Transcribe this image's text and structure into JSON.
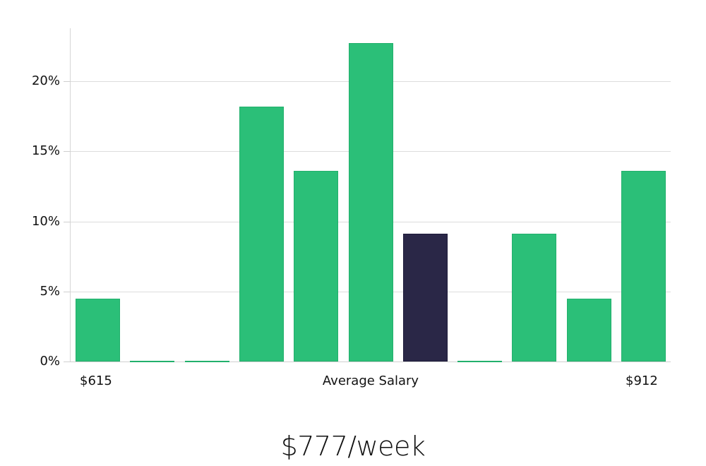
{
  "chart_data": {
    "type": "bar",
    "title": "",
    "xlabel": "Average Salary",
    "ylabel": "",
    "x_range_labels": {
      "min": "$615",
      "max": "$912"
    },
    "categories": [
      "bin1",
      "bin2",
      "bin3",
      "bin4",
      "bin5",
      "bin6",
      "bin7",
      "bin8",
      "bin9",
      "bin10",
      "bin11"
    ],
    "values": [
      4.5,
      0,
      0,
      18.2,
      13.6,
      22.7,
      9.1,
      0,
      9.1,
      4.5,
      13.6
    ],
    "highlight_index": 6,
    "ylim": [
      0,
      23.7
    ],
    "yticks": [
      0,
      5,
      10,
      15,
      20
    ],
    "ytick_labels": [
      "0%",
      "5%",
      "10%",
      "15%",
      "20%"
    ],
    "grid": true,
    "legend": null,
    "colors": {
      "bar": "#2bbf78",
      "highlight": "#2a2747",
      "grid": "#dcdcdc"
    },
    "summary": "$777/week"
  },
  "axis": {
    "min_label": "$615",
    "center_label": "Average Salary",
    "max_label": "$912"
  },
  "summary": {
    "value": "$777/week"
  }
}
